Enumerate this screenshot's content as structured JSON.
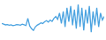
{
  "chart_data": {
    "type": "line",
    "x": [
      0,
      1,
      2,
      3,
      4,
      5,
      6,
      7,
      8,
      9,
      10,
      11,
      12,
      13,
      14,
      15,
      16,
      17,
      18,
      19,
      20,
      21,
      22,
      23,
      24,
      25,
      26,
      27,
      28,
      29,
      30,
      31,
      32,
      33,
      34,
      35,
      36,
      37,
      38,
      39,
      40,
      41,
      42,
      43,
      44,
      45,
      46,
      47,
      48,
      49,
      50,
      51,
      52,
      53,
      54,
      55
    ],
    "values": [
      40,
      38,
      36,
      37,
      35,
      36,
      34,
      35,
      37,
      36,
      35,
      38,
      36,
      34,
      55,
      33,
      25,
      20,
      30,
      35,
      38,
      42,
      40,
      45,
      48,
      44,
      50,
      46,
      55,
      60,
      52,
      70,
      40,
      75,
      30,
      85,
      45,
      90,
      35,
      80,
      25,
      95,
      30,
      85,
      20,
      80,
      40,
      90,
      15,
      75,
      35,
      85,
      30,
      70,
      50,
      60
    ],
    "xlim": [
      0,
      55
    ],
    "ylim": [
      0,
      100
    ],
    "color": "#4ba3e0",
    "tick_labels": false
  }
}
